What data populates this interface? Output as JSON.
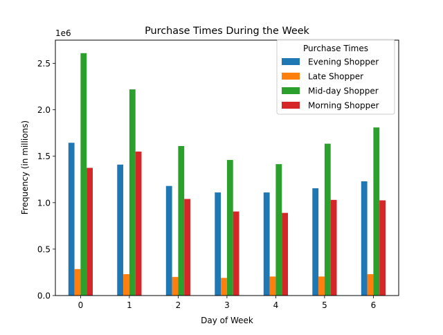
{
  "chart_data": {
    "type": "bar",
    "title": "Purchase Times During the Week",
    "xlabel": "Day of Week",
    "ylabel": "Frequency (in millions)",
    "y_offset_label": "1e6",
    "categories": [
      "0",
      "1",
      "2",
      "3",
      "4",
      "5",
      "6"
    ],
    "ylim": [
      0,
      2.75
    ],
    "yticks": [
      "0.0",
      "0.5",
      "1.0",
      "1.5",
      "2.0",
      "2.5"
    ],
    "grid": false,
    "legend": {
      "title": "Purchase Times",
      "placement": "top-right"
    },
    "series": [
      {
        "name": "Evening Shopper",
        "color": "#1f77b4",
        "values": [
          1.645,
          1.41,
          1.18,
          1.11,
          1.11,
          1.155,
          1.23
        ]
      },
      {
        "name": "Late Shopper",
        "color": "#ff7f0e",
        "values": [
          0.285,
          0.23,
          0.2,
          0.19,
          0.205,
          0.205,
          0.23
        ]
      },
      {
        "name": "Mid-day Shopper",
        "color": "#2ca02c",
        "values": [
          2.61,
          2.22,
          1.61,
          1.46,
          1.415,
          1.635,
          1.81
        ]
      },
      {
        "name": "Morning Shopper",
        "color": "#d62728",
        "values": [
          1.375,
          1.55,
          1.04,
          0.905,
          0.89,
          1.03,
          1.025
        ]
      }
    ]
  }
}
